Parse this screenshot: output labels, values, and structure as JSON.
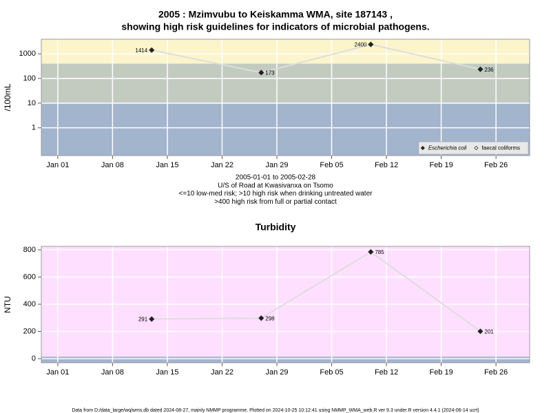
{
  "chart_data": [
    {
      "type": "line",
      "title": [
        "2005 : Mzimvubu to Keiskamma WMA, site 187143 ,",
        "showing high risk guidelines for indicators of microbial pathogens."
      ],
      "ylabel": "/100mL",
      "notes": [
        "2005-01-01 to 2005-02-28",
        "U/S of Road at Kwasivanxa on Tsomo",
        "<=10 low-med risk; >10 high risk when drinking untreated water",
        ">400 high risk from full or partial contact"
      ],
      "x": [
        13,
        27,
        41,
        55
      ],
      "xlim": [
        -1.1,
        61.3
      ],
      "xticks": [
        {
          "value": 1,
          "label": "Jan 01"
        },
        {
          "value": 8,
          "label": "Jan 08"
        },
        {
          "value": 15,
          "label": "Jan 15"
        },
        {
          "value": 22,
          "label": "Jan 22"
        },
        {
          "value": 29,
          "label": "Jan 29"
        },
        {
          "value": 36,
          "label": "Feb 05"
        },
        {
          "value": 43,
          "label": "Feb 12"
        },
        {
          "value": 50,
          "label": "Feb 19"
        },
        {
          "value": 57,
          "label": "Feb 26"
        }
      ],
      "ylim": [
        0.075,
        3900
      ],
      "yticks": [
        1,
        10,
        100,
        1000
      ],
      "log_y": true,
      "grid": true,
      "bands": [
        {
          "max": 10,
          "color": "#a3b4cd"
        },
        {
          "min": 10,
          "max": 400,
          "color": "#c3cbc1"
        },
        {
          "min": 400,
          "color": "#fcf5cb"
        }
      ],
      "line_color": "#dddddd",
      "legend": "bottom-right",
      "series": [
        {
          "name": "Escherichia coli",
          "color": "#222222",
          "marker": "filled",
          "values": [
            1414,
            173,
            2400,
            236
          ]
        },
        {
          "name": "faecal coliforms",
          "color": "#222222",
          "marker": "open",
          "values": [
            null,
            null,
            null,
            null
          ]
        }
      ]
    },
    {
      "type": "line",
      "title": [
        "Turbidity"
      ],
      "ylabel": "NTU",
      "x": [
        13,
        27,
        41,
        55
      ],
      "xlim": [
        -1.1,
        61.3
      ],
      "xticks": [
        {
          "value": 1,
          "label": "Jan 01"
        },
        {
          "value": 8,
          "label": "Jan 08"
        },
        {
          "value": 15,
          "label": "Jan 15"
        },
        {
          "value": 22,
          "label": "Jan 22"
        },
        {
          "value": 29,
          "label": "Jan 29"
        },
        {
          "value": 36,
          "label": "Feb 05"
        },
        {
          "value": 43,
          "label": "Feb 12"
        },
        {
          "value": 50,
          "label": "Feb 19"
        },
        {
          "value": 57,
          "label": "Feb 26"
        }
      ],
      "ylim": [
        -30,
        825
      ],
      "yticks": [
        0,
        200,
        400,
        600,
        800
      ],
      "grid": true,
      "bands": [
        {
          "max": 15,
          "color": "#a3b4cd"
        },
        {
          "min": 15,
          "color": "#ffdfff"
        }
      ],
      "line_color": "#dddddd",
      "series": [
        {
          "name": "Turbidity",
          "color": "#222222",
          "marker": "filled",
          "values": [
            291,
            298,
            785,
            201
          ]
        }
      ]
    }
  ],
  "footer": "Data from D:/data_large/wq/wms.db dated 2024-08-27, mainly NMMP programme. Plotted on 2024-10-25 10:12:41 using NMMP_WMA_web.R ver 9.3 under R version 4.4.1 (2024-06-14 ucrt)"
}
